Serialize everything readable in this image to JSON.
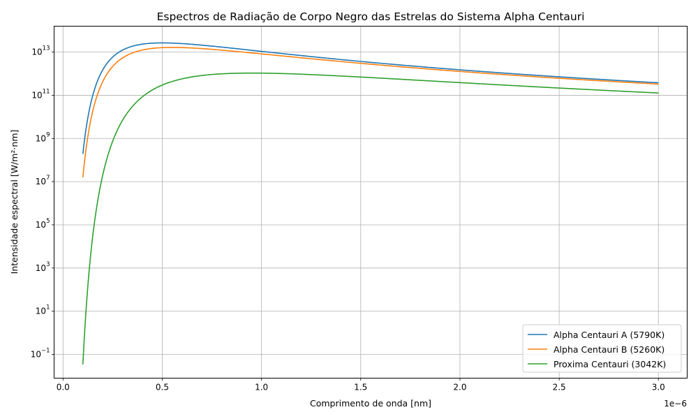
{
  "chart_data": {
    "type": "line",
    "title": "Espectros de Radiação de Corpo Negro das Estrelas do Sistema Alpha Centauri",
    "xlabel": "Comprimento de onda [nm]",
    "ylabel": "Intensidade espectral [W/m²·nm]",
    "x_offset_label": "1e−6",
    "xscale": "linear",
    "yscale": "log",
    "xlim": [
      -0.045,
      3.145
    ],
    "ylim_exponent": [
      -2.1,
      14.2
    ],
    "x_ticks": [
      0.0,
      0.5,
      1.0,
      1.5,
      2.0,
      2.5,
      3.0
    ],
    "x_tick_labels": [
      "0.0",
      "0.5",
      "1.0",
      "1.5",
      "2.0",
      "2.5",
      "3.0"
    ],
    "y_tick_exponents": [
      -1,
      1,
      3,
      5,
      7,
      9,
      11,
      13
    ],
    "y_tick_labels": [
      "−1",
      "1",
      "3",
      "5",
      "7",
      "9",
      "11",
      "13"
    ],
    "y_tick_base": "10",
    "grid": true,
    "legend_position": "bottom-right",
    "colors": {
      "A": "#1f77b4",
      "B": "#ff7f0e",
      "C": "#2ca02c"
    },
    "series": [
      {
        "key": "A",
        "name": "Alpha Centauri A (5790K)",
        "temperature_K": 5790
      },
      {
        "key": "B",
        "name": "Alpha Centauri B (5260K)",
        "temperature_K": 5260
      },
      {
        "key": "C",
        "name": "Proxima Centauri (3042K)",
        "temperature_K": 3042
      }
    ],
    "x_range": [
      0.1,
      3.0
    ]
  }
}
